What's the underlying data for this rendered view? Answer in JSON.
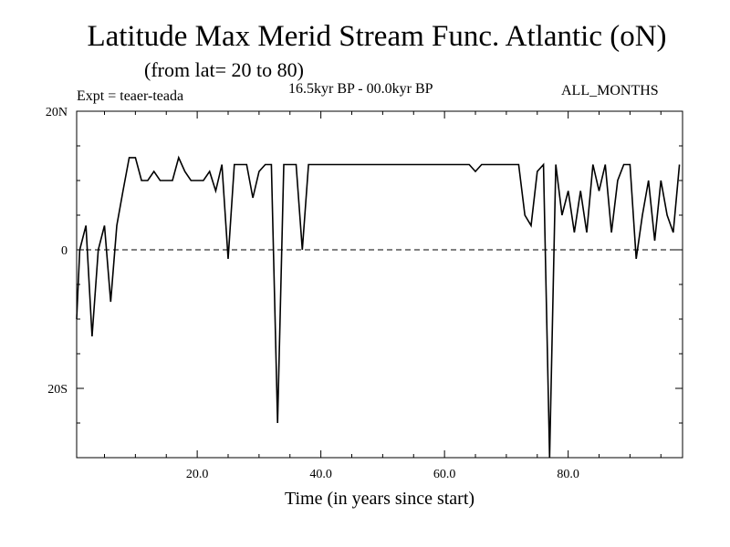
{
  "header": {
    "title": "Latitude Max Merid Stream Func. Atlantic (oN)",
    "subtitle": "(from lat= 20 to 80)",
    "experiment": "Expt = teaer-teada",
    "period": "16.5kyr BP - 00.0kyr BP",
    "months": "ALL_MONTHS"
  },
  "chart_data": {
    "type": "line",
    "title": "Latitude Max Merid Stream Func. Atlantic (oN)",
    "xlabel": "Time (in years since start)",
    "ylabel": "",
    "xlim": [
      0.5,
      98.5
    ],
    "ylim": [
      -30,
      20
    ],
    "x_ticks": [
      20,
      40,
      60,
      80
    ],
    "x_tick_labels": [
      "20.0",
      "40.0",
      "60.0",
      "80.0"
    ],
    "y_ticks": [
      20,
      0,
      -20
    ],
    "y_tick_labels": [
      "20N",
      "0",
      "20S"
    ],
    "reference_line": {
      "y": 0,
      "style": "dashed"
    },
    "series": [
      {
        "name": "teaer-teada",
        "x": [
          0.5,
          1,
          2,
          3,
          4,
          5,
          6,
          7,
          8,
          9,
          10,
          11,
          12,
          13,
          14,
          15,
          16,
          17,
          18,
          19,
          20,
          21,
          22,
          23,
          24,
          25,
          26,
          27,
          28,
          29,
          30,
          31,
          32,
          33,
          34,
          35,
          36,
          37,
          38,
          39,
          40,
          41,
          42,
          43,
          44,
          45,
          46,
          47,
          48,
          49,
          50,
          51,
          52,
          53,
          54,
          55,
          56,
          57,
          58,
          59,
          60,
          61,
          62,
          63,
          64,
          65,
          66,
          67,
          68,
          69,
          70,
          71,
          72,
          73,
          74,
          75,
          76,
          77,
          78,
          79,
          80,
          81,
          82,
          83,
          84,
          85,
          86,
          87,
          88,
          89,
          90,
          91,
          92,
          93,
          94,
          95,
          96,
          97,
          98
        ],
        "values": [
          -10,
          0,
          3.5,
          -12.5,
          0,
          3.5,
          -7.5,
          3.5,
          8.5,
          13.3,
          13.3,
          10,
          10,
          11.3,
          10,
          10,
          10,
          13.3,
          11.3,
          10,
          10,
          10,
          11.3,
          8.5,
          12.3,
          -1.3,
          12.3,
          12.3,
          12.3,
          7.5,
          11.3,
          12.3,
          12.3,
          -25,
          12.3,
          12.3,
          12.3,
          0,
          12.3,
          12.3,
          12.3,
          12.3,
          12.3,
          12.3,
          12.3,
          12.3,
          12.3,
          12.3,
          12.3,
          12.3,
          12.3,
          12.3,
          12.3,
          12.3,
          12.3,
          12.3,
          12.3,
          12.3,
          12.3,
          12.3,
          12.3,
          12.3,
          12.3,
          12.3,
          12.3,
          11.3,
          12.3,
          12.3,
          12.3,
          12.3,
          12.3,
          12.3,
          12.3,
          5,
          3.5,
          11.3,
          12.3,
          -30,
          12.3,
          5,
          8.5,
          2.5,
          8.5,
          2.5,
          12.3,
          8.5,
          12.3,
          2.5,
          10,
          12.3,
          12.3,
          -1.3,
          5,
          10,
          1.3,
          10,
          5,
          2.5,
          12.3
        ]
      }
    ]
  }
}
